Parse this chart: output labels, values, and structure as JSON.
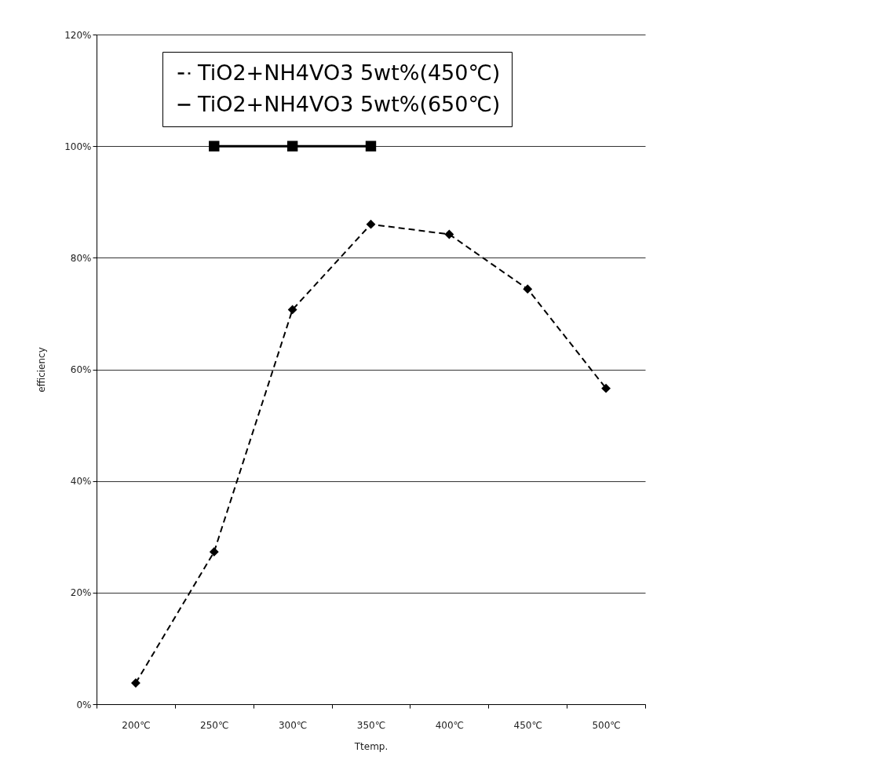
{
  "chart_data": {
    "type": "line",
    "xlabel": "Ttemp.",
    "ylabel": "efficiency",
    "categories": [
      "200℃",
      "250℃",
      "300℃",
      "350℃",
      "400℃",
      "450℃",
      "500℃"
    ],
    "series": [
      {
        "name": "TiO2+NH4VO3 5wt%(450℃)",
        "color": "#000000",
        "marker": "diamond",
        "line_style": "dashed",
        "values": [
          3.8,
          27.3,
          70.7,
          86.0,
          84.2,
          74.4,
          56.6
        ]
      },
      {
        "name": "TiO2+NH4VO3 5wt%(650℃)",
        "color": "#000000",
        "marker": "square",
        "line_style": "solid",
        "values": [
          null,
          100,
          100,
          100,
          null,
          null,
          null
        ]
      }
    ],
    "ylim": [
      0,
      120
    ],
    "yticks": [
      {
        "value": 0,
        "label": "0%"
      },
      {
        "value": 20,
        "label": "20%"
      },
      {
        "value": 40,
        "label": "40%"
      },
      {
        "value": 60,
        "label": "60%"
      },
      {
        "value": 80,
        "label": "80%"
      },
      {
        "value": 100,
        "label": "100%"
      },
      {
        "value": 120,
        "label": "120%"
      }
    ],
    "grid": "y",
    "legend": "top"
  }
}
